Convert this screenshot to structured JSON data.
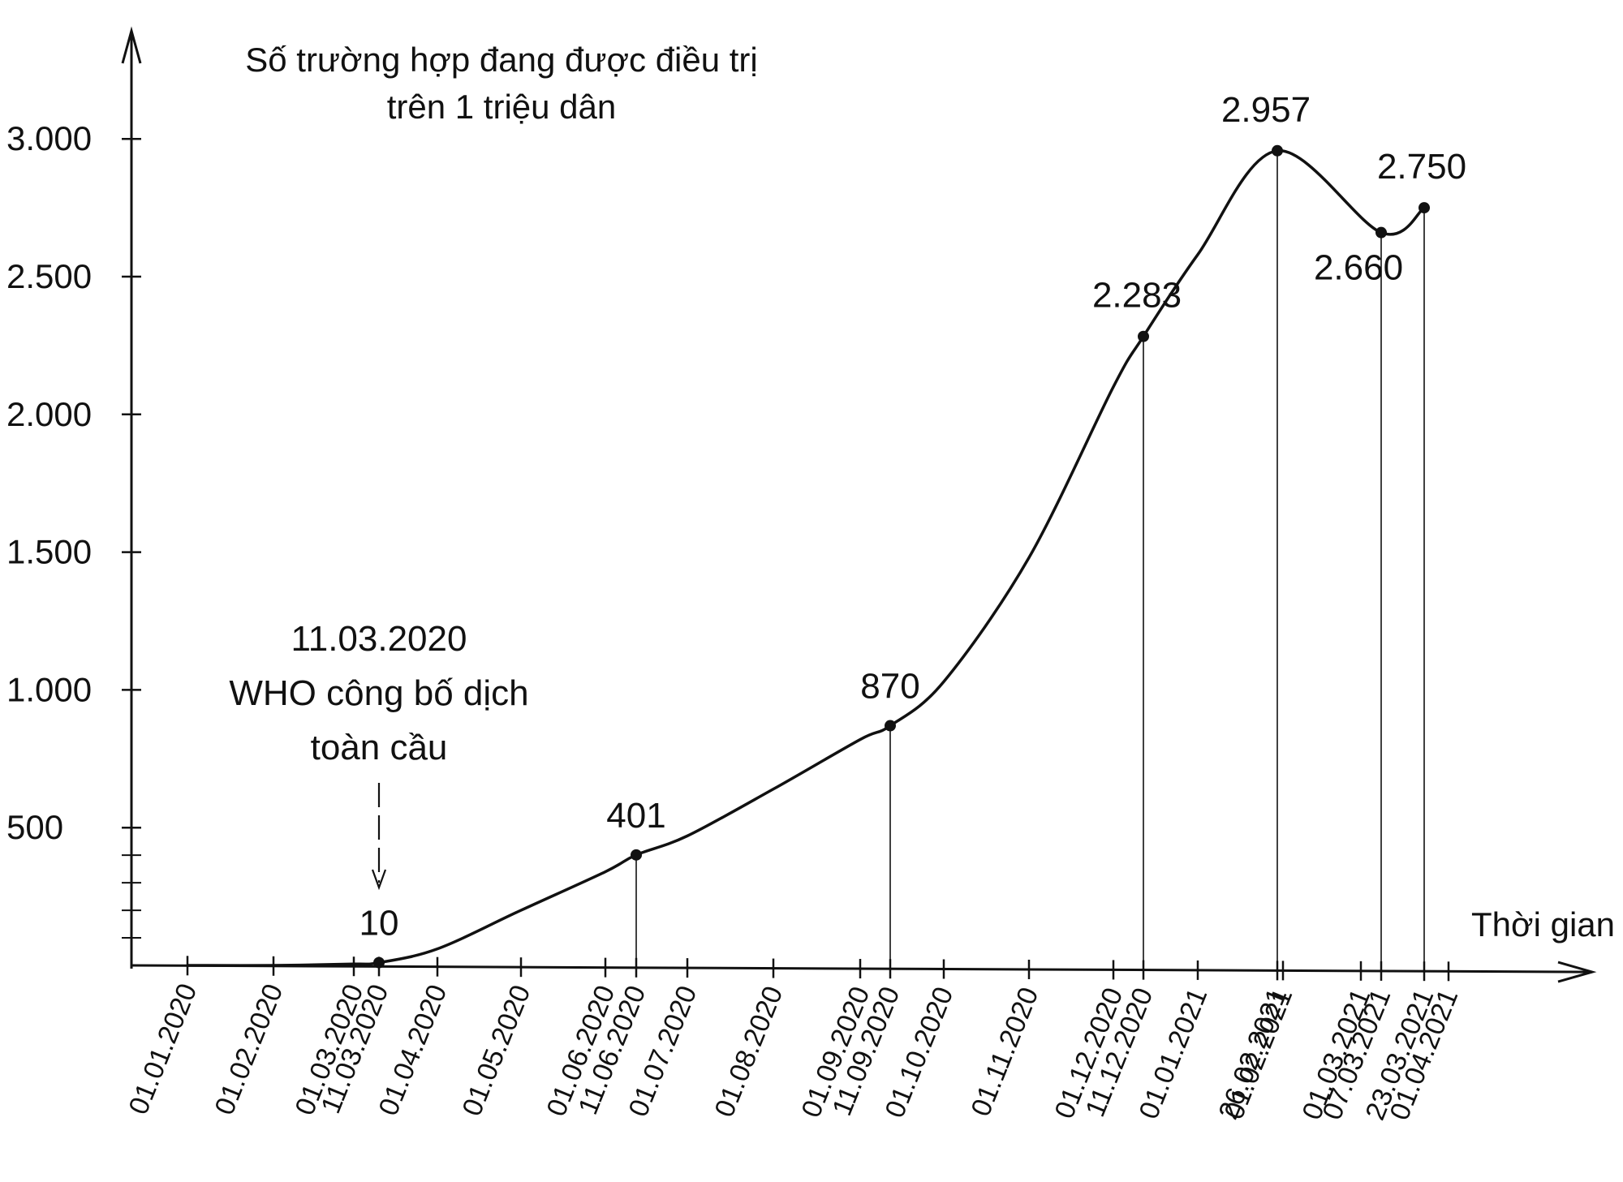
{
  "chart_data": {
    "type": "line",
    "title": [
      "Số trường hợp đang được điều trị",
      "trên 1 triệu dân"
    ],
    "xlabel": "Thời gian",
    "ylabel": "",
    "ylim": [
      0,
      3400
    ],
    "yticks": [
      {
        "value": 500,
        "label": "500"
      },
      {
        "value": 1000,
        "label": "1.000"
      },
      {
        "value": 1500,
        "label": "1.500"
      },
      {
        "value": 2000,
        "label": "2.000"
      },
      {
        "value": 2500,
        "label": "2.500"
      },
      {
        "value": 3000,
        "label": "3.000"
      }
    ],
    "yminor_ticks": [
      100,
      200,
      300,
      400
    ],
    "xticks": [
      "01.01.2020",
      "01.02.2020",
      "01.03.2020",
      "11.03.2020",
      "01.04.2020",
      "01.05.2020",
      "01.06.2020",
      "11.06.2020",
      "01.07.2020",
      "01.08.2020",
      "01.09.2020",
      "11.09.2020",
      "01.10.2020",
      "01.11.2020",
      "01.12.2020",
      "11.12.2020",
      "01.01.2021",
      "26.02.2021",
      "01.02.2021",
      "01.03.2021",
      "07.03.2021",
      "23.03.2021",
      "01.04.2021"
    ],
    "series": [
      {
        "color": "#111111",
        "points": [
          {
            "x": "01.01.2020",
            "y": 0
          },
          {
            "x": "01.02.2020",
            "y": 0
          },
          {
            "x": "01.03.2020",
            "y": 5
          },
          {
            "x": "11.03.2020",
            "y": 10,
            "label": "10"
          },
          {
            "x": "01.04.2020",
            "y": 60
          },
          {
            "x": "01.05.2020",
            "y": 200
          },
          {
            "x": "01.06.2020",
            "y": 340
          },
          {
            "x": "11.06.2020",
            "y": 401,
            "label": "401"
          },
          {
            "x": "01.07.2020",
            "y": 470
          },
          {
            "x": "01.08.2020",
            "y": 640
          },
          {
            "x": "01.09.2020",
            "y": 820
          },
          {
            "x": "11.09.2020",
            "y": 870,
            "label": "870"
          },
          {
            "x": "01.10.2020",
            "y": 1030
          },
          {
            "x": "01.11.2020",
            "y": 1480
          },
          {
            "x": "01.12.2020",
            "y": 2100
          },
          {
            "x": "11.12.2020",
            "y": 2283,
            "label": "2.283"
          },
          {
            "x": "01.01.2021",
            "y": 2580
          },
          {
            "x": "26.02.2021",
            "y": 2957,
            "label": "2.957"
          },
          {
            "x": "07.03.2021",
            "y": 2660,
            "label": "2.660"
          },
          {
            "x": "23.03.2021",
            "y": 2750,
            "label": "2.750"
          }
        ]
      }
    ],
    "annotations": [
      {
        "x": "11.03.2020",
        "lines": [
          "11.03.2020",
          "WHO công bố dịch",
          "toàn cầu"
        ],
        "arrow": "dashed-down"
      }
    ],
    "drop_lines_at": [
      "11.06.2020",
      "11.09.2020",
      "11.12.2020",
      "26.02.2021",
      "07.03.2021",
      "23.03.2021"
    ],
    "grid": false,
    "legend": "none"
  }
}
